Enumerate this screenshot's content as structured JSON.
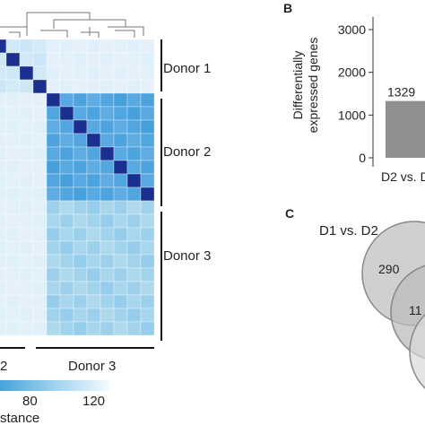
{
  "panels": {
    "b_label": "B",
    "c_label": "C"
  },
  "heatmap": {
    "groups": [
      "Donor 1",
      "Donor 2",
      "Donor 3"
    ],
    "bottom_labels": [
      "2",
      "Donor 3"
    ],
    "legend_ticks": [
      "80",
      "120"
    ],
    "legend_caption": "stance",
    "colors": {
      "low": "#1a2a8a",
      "mid": "#4a9fd8",
      "high": "#f4f9fd"
    }
  },
  "chart_data": {
    "type": "bar",
    "categories": [
      "D2 vs. D"
    ],
    "values": [
      1329
    ],
    "bar_label": "1329",
    "ylabel_lines": [
      "Differentially",
      "expressed genes"
    ],
    "yticks": [
      "0",
      "1000",
      "2000",
      "3000"
    ],
    "ylim": [
      0,
      3300
    ],
    "bar_color": "#8f8f8f"
  },
  "venn": {
    "title": "D1 vs. D2",
    "counts": [
      "290",
      "11"
    ],
    "fill": "#bdbdbd"
  }
}
